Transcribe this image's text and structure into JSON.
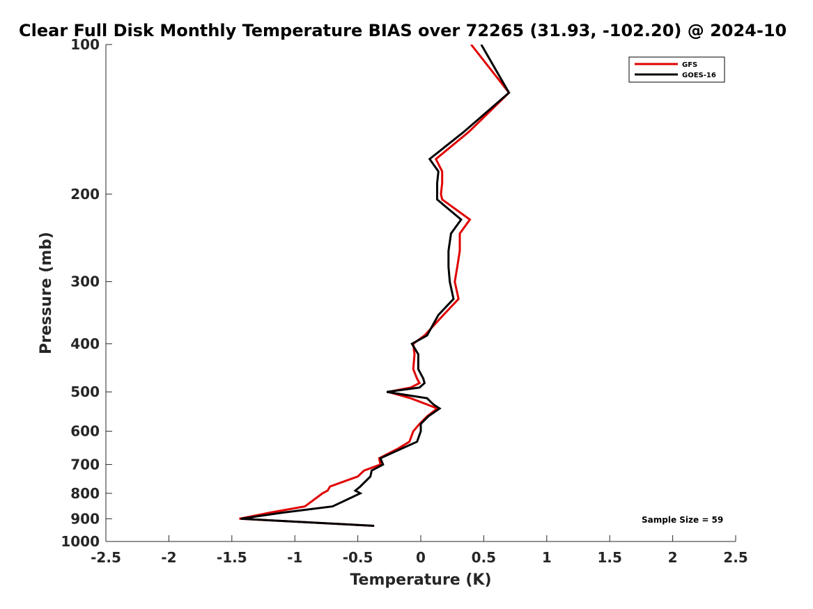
{
  "chart_data": {
    "type": "line",
    "title": "Clear Full Disk Monthly Temperature BIAS over 72265 (31.93, -102.20) @ 2024-10",
    "xlabel": "Temperature (K)",
    "ylabel": "Pressure (mb)",
    "xlim": [
      -2.5,
      2.5
    ],
    "ylim": [
      100,
      1000
    ],
    "y_scale": "log",
    "y_reversed": true,
    "x_ticks": [
      "-2.5",
      "-2",
      "-1.5",
      "-1",
      "-0.5",
      "0",
      "0.5",
      "1",
      "1.5",
      "2",
      "2.5"
    ],
    "y_ticks": [
      "100",
      "200",
      "300",
      "400",
      "500",
      "600",
      "700",
      "800",
      "900",
      "1000"
    ],
    "grid": false,
    "legend_position": "top-right",
    "annotation": "Sample Size = 59",
    "series": [
      {
        "name": "GFS",
        "color": "#e00000",
        "points": [
          [
            0.4,
            100
          ],
          [
            0.7,
            125
          ],
          [
            0.38,
            150
          ],
          [
            0.12,
            170
          ],
          [
            0.17,
            180
          ],
          [
            0.17,
            190
          ],
          [
            0.16,
            200
          ],
          [
            0.17,
            205
          ],
          [
            0.39,
            225
          ],
          [
            0.31,
            240
          ],
          [
            0.31,
            260
          ],
          [
            0.29,
            280
          ],
          [
            0.27,
            300
          ],
          [
            0.3,
            325
          ],
          [
            0.18,
            350
          ],
          [
            0.03,
            385
          ],
          [
            -0.06,
            400
          ],
          [
            -0.05,
            420
          ],
          [
            -0.06,
            450
          ],
          [
            -0.03,
            470
          ],
          [
            -0.01,
            480
          ],
          [
            -0.08,
            490
          ],
          [
            -0.26,
            500
          ],
          [
            -0.08,
            515
          ],
          [
            0.05,
            530
          ],
          [
            0.13,
            540
          ],
          [
            0.05,
            560
          ],
          [
            -0.01,
            580
          ],
          [
            -0.06,
            600
          ],
          [
            -0.09,
            630
          ],
          [
            -0.18,
            650
          ],
          [
            -0.33,
            680
          ],
          [
            -0.32,
            700
          ],
          [
            -0.45,
            720
          ],
          [
            -0.5,
            740
          ],
          [
            -0.72,
            775
          ],
          [
            -0.74,
            790
          ],
          [
            -0.78,
            800
          ],
          [
            -0.92,
            850
          ],
          [
            -1.2,
            875
          ],
          [
            -1.44,
            900
          ],
          [
            -0.37,
            930
          ]
        ]
      },
      {
        "name": "GOES-16",
        "color": "#000000",
        "points": [
          [
            0.48,
            100
          ],
          [
            0.7,
            125
          ],
          [
            0.34,
            150
          ],
          [
            0.07,
            170
          ],
          [
            0.14,
            180
          ],
          [
            0.13,
            190
          ],
          [
            0.13,
            200
          ],
          [
            0.13,
            205
          ],
          [
            0.32,
            225
          ],
          [
            0.24,
            240
          ],
          [
            0.22,
            260
          ],
          [
            0.22,
            280
          ],
          [
            0.23,
            300
          ],
          [
            0.26,
            325
          ],
          [
            0.14,
            350
          ],
          [
            0.05,
            385
          ],
          [
            -0.07,
            400
          ],
          [
            -0.02,
            420
          ],
          [
            -0.02,
            450
          ],
          [
            0.02,
            470
          ],
          [
            0.03,
            480
          ],
          [
            -0.01,
            490
          ],
          [
            -0.27,
            500
          ],
          [
            0.05,
            515
          ],
          [
            0.1,
            530
          ],
          [
            0.15,
            540
          ],
          [
            0.06,
            560
          ],
          [
            0.0,
            580
          ],
          [
            0.0,
            600
          ],
          [
            -0.03,
            630
          ],
          [
            -0.15,
            650
          ],
          [
            -0.32,
            680
          ],
          [
            -0.3,
            700
          ],
          [
            -0.39,
            720
          ],
          [
            -0.4,
            740
          ],
          [
            -0.48,
            775
          ],
          [
            -0.52,
            790
          ],
          [
            -0.48,
            800
          ],
          [
            -0.7,
            850
          ],
          [
            -1.1,
            875
          ],
          [
            -1.43,
            900
          ],
          [
            -0.37,
            930
          ]
        ]
      }
    ]
  }
}
